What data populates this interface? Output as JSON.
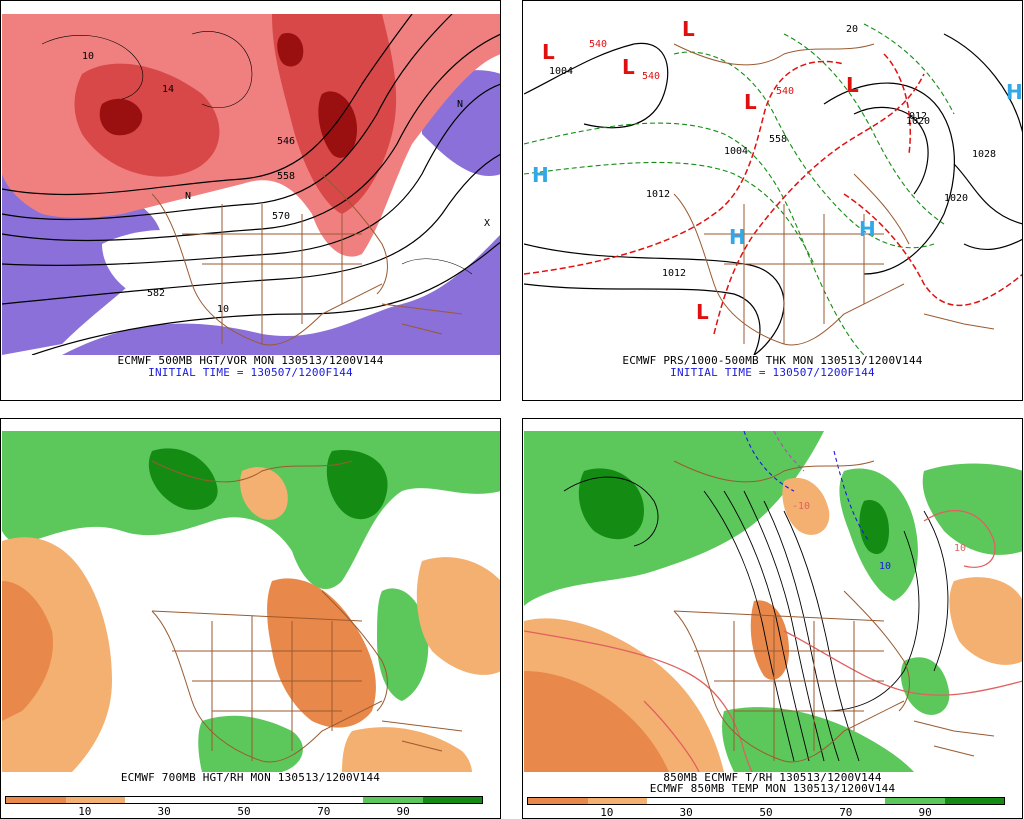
{
  "colors": {
    "vort_red_light": "#f08080",
    "vort_red_mid": "#d84848",
    "vort_red_dark": "#9a1010",
    "vort_purple": "#8a70d8",
    "rh_green_light": "#5cc85c",
    "rh_green_dark": "#148c14",
    "rh_orange_light": "#f4b070",
    "rh_orange_dark": "#e8884a",
    "map_brown": "#9a5a30",
    "caption_blue": "#1a1ae0",
    "high_blue": "#32a8e8",
    "low_red": "#e01010"
  },
  "panel1": {
    "caption_line1": "ECMWF 500MB HGT/VOR MON 130513/1200V144",
    "caption_line2": "INITIAL TIME = 130507/1200F144",
    "height_labels": [
      "546",
      "558",
      "570",
      "582"
    ],
    "vort_labels": [
      "10",
      "14",
      "10"
    ],
    "markers": [
      "N",
      "N",
      "X"
    ]
  },
  "panel2": {
    "caption_line1": "ECMWF PRS/1000-500MB THK MON 130513/1200V144",
    "caption_line2": "INITIAL TIME = 130507/1200F144",
    "lows": [
      "L",
      "L",
      "L",
      "L",
      "L",
      "L"
    ],
    "highs": [
      "H",
      "H",
      "H",
      "H"
    ],
    "pressure_labels": [
      "1004",
      "1028",
      "1020",
      "1012",
      "1012",
      "1020",
      "1004"
    ],
    "thickness_labels": [
      "540",
      "540",
      "558",
      "540",
      "20",
      "012"
    ]
  },
  "panel3": {
    "caption_line1": "ECMWF 700MB HGT/RH MON 130513/1200V144",
    "colorbar_ticks": [
      "10",
      "30",
      "50",
      "70",
      "90"
    ]
  },
  "panel4": {
    "caption_line1": "850MB ECMWF T/RH 130513/1200V144",
    "caption_line2": "ECMWF 850MB TEMP MON 130513/1200V144",
    "temp_labels": [
      "-10",
      "10",
      "10"
    ],
    "colorbar_ticks": [
      "10",
      "30",
      "50",
      "70",
      "90"
    ]
  }
}
